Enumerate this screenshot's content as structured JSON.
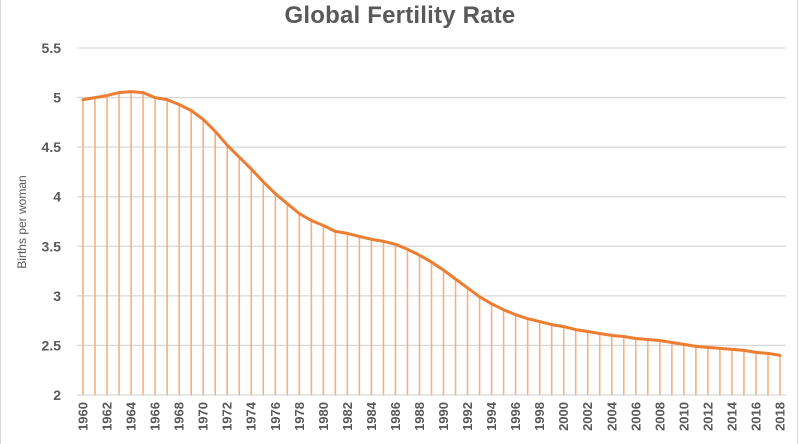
{
  "chart_data": {
    "type": "line",
    "title": "Global Fertility Rate",
    "xlabel": "",
    "ylabel": "Births per woman",
    "ylim": [
      2,
      5.5
    ],
    "yticks": [
      "2",
      "2.5",
      "3",
      "3.5",
      "4",
      "4.5",
      "5",
      "5.5"
    ],
    "ytick_values": [
      2,
      2.5,
      3,
      3.5,
      4,
      4.5,
      5,
      5.5
    ],
    "grid": true,
    "drop_lines": true,
    "series_color": "#ed7d31",
    "grid_color": "#d9d9d9",
    "xtick_labels": [
      "1960",
      "1962",
      "1964",
      "1966",
      "1968",
      "1970",
      "1972",
      "1974",
      "1976",
      "1978",
      "1980",
      "1982",
      "1984",
      "1986",
      "1988",
      "1990",
      "1992",
      "1994",
      "1996",
      "1998",
      "2000",
      "2002",
      "2004",
      "2006",
      "2008",
      "2010",
      "2012",
      "2014",
      "2016",
      "2018"
    ],
    "x": [
      1960,
      1961,
      1962,
      1963,
      1964,
      1965,
      1966,
      1967,
      1968,
      1969,
      1970,
      1971,
      1972,
      1973,
      1974,
      1975,
      1976,
      1977,
      1978,
      1979,
      1980,
      1981,
      1982,
      1983,
      1984,
      1985,
      1986,
      1987,
      1988,
      1989,
      1990,
      1991,
      1992,
      1993,
      1994,
      1995,
      1996,
      1997,
      1998,
      1999,
      2000,
      2001,
      2002,
      2003,
      2004,
      2005,
      2006,
      2007,
      2008,
      2009,
      2010,
      2011,
      2012,
      2013,
      2014,
      2015,
      2016,
      2017,
      2018
    ],
    "series": [
      {
        "name": "Births per woman",
        "values": [
          4.98,
          5.0,
          5.02,
          5.05,
          5.06,
          5.05,
          5.0,
          4.98,
          4.93,
          4.87,
          4.78,
          4.66,
          4.52,
          4.4,
          4.28,
          4.15,
          4.03,
          3.93,
          3.83,
          3.76,
          3.71,
          3.65,
          3.63,
          3.6,
          3.57,
          3.55,
          3.52,
          3.47,
          3.41,
          3.34,
          3.26,
          3.17,
          3.08,
          2.99,
          2.92,
          2.86,
          2.81,
          2.77,
          2.74,
          2.71,
          2.69,
          2.66,
          2.64,
          2.62,
          2.6,
          2.59,
          2.57,
          2.56,
          2.55,
          2.53,
          2.51,
          2.49,
          2.48,
          2.47,
          2.46,
          2.45,
          2.43,
          2.42,
          2.4
        ]
      }
    ]
  }
}
